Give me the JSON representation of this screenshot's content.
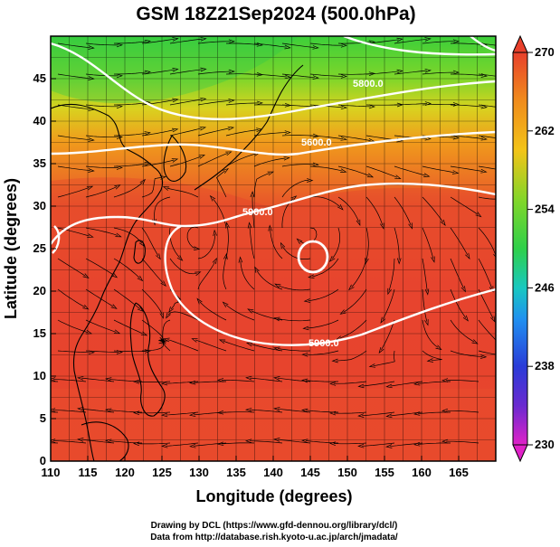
{
  "title": "GSM 18Z21Sep2024 (500.0hPa)",
  "x_axis": {
    "label": "Longitude (degrees)",
    "range": [
      110,
      170
    ],
    "ticks": [
      "110",
      "115",
      "120",
      "125",
      "130",
      "135",
      "140",
      "145",
      "150",
      "155",
      "160",
      "165"
    ]
  },
  "y_axis": {
    "label": "Latitude  (degrees)",
    "range": [
      0,
      50
    ],
    "ticks": [
      "0",
      "5",
      "10",
      "15",
      "20",
      "25",
      "30",
      "35",
      "40",
      "45"
    ]
  },
  "colorbar": {
    "ticks": [
      "230",
      "238",
      "246",
      "254",
      "262",
      "270"
    ],
    "range": [
      230,
      270
    ],
    "unit_hint": "temperature (K)"
  },
  "contour_labels": [
    "5800.0",
    "5600.0",
    "5900.0",
    "5900.0"
  ],
  "credits": [
    "Drawing by DCL (https://www.gfd-dennou.org/library/dcl/)",
    "Data from http://database.rish.kyoto-u.ac.jp/arch/jmadata/"
  ],
  "colors": {
    "warm": "#e8452c",
    "mid": "#f2a318",
    "cold": "#3ccf3a",
    "contour": "#ffffff",
    "coast": "#000000"
  },
  "map_features": {
    "domain": "West Pacific / East Asia",
    "field": "500 hPa temperature shaded, geopotential height contours, wind streamlines",
    "closed_high_center": [
      145,
      26.5
    ]
  }
}
